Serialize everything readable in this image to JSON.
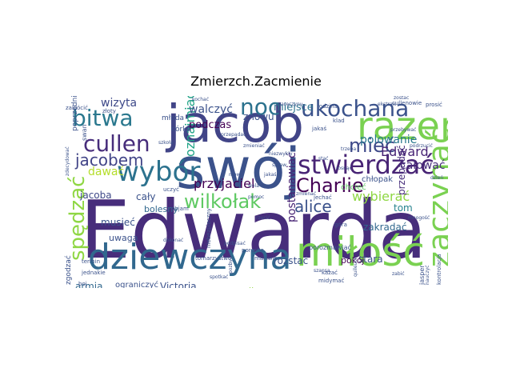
{
  "title": "Zmierzch.Zacmienie",
  "words": [
    {
      "text": "Edwarda",
      "color": "#472d7b"
    },
    {
      "text": "jacob",
      "color": "#414487"
    },
    {
      "text": "swój",
      "color": "#3b528b"
    },
    {
      "text": "razem",
      "color": "#7ad151"
    },
    {
      "text": "miłość",
      "color": "#7ad151"
    },
    {
      "text": "dziewczyna",
      "color": "#31688e"
    },
    {
      "text": "zaczynać",
      "color": "#7ad151"
    },
    {
      "text": "stwierdzać",
      "color": "#482475"
    },
    {
      "text": "wybór",
      "color": "#2c728e"
    },
    {
      "text": "bitwa",
      "color": "#2a788e"
    },
    {
      "text": "cullen",
      "color": "#472d7b"
    },
    {
      "text": "noc",
      "color": "#2c728e"
    },
    {
      "text": "ukochana",
      "color": "#3b528b"
    },
    {
      "text": "mieć",
      "color": "#3e4989"
    },
    {
      "text": "Charlie",
      "color": "#440154"
    },
    {
      "text": "spędzać",
      "color": "#8fd744"
    },
    {
      "text": "jacobem",
      "color": "#414487"
    },
    {
      "text": "wilkołak",
      "color": "#5ec962"
    },
    {
      "text": "alice",
      "color": "#3b528b"
    },
    {
      "text": "wybierać",
      "color": "#8fd744"
    },
    {
      "text": "Edward",
      "color": "#482475"
    },
    {
      "text": "polowanie",
      "color": "#2a788e"
    },
    {
      "text": "przyjaciel",
      "color": "#440154"
    },
    {
      "text": "wizyta",
      "color": "#3e4989"
    },
    {
      "text": "oznajmiać",
      "color": "#20a386"
    },
    {
      "text": "całować",
      "color": "#472d7b"
    },
    {
      "text": "podczas",
      "color": "#440154"
    },
    {
      "text": "walczyć",
      "color": "#3b528b"
    },
    {
      "text": "miejsce",
      "color": "#2c728e"
    },
    {
      "text": "znowu",
      "color": "#3b528b"
    },
    {
      "text": "dawać",
      "color": "#b5de2b"
    },
    {
      "text": "jacoba",
      "color": "#3e4989"
    },
    {
      "text": "cały",
      "color": "#3b528b"
    },
    {
      "text": "bolesny",
      "color": "#31688e"
    },
    {
      "text": "musieć",
      "color": "#3b528b"
    },
    {
      "text": "uwaga",
      "color": "#3b528b"
    },
    {
      "text": "przepadać",
      "color": "#472d7b"
    },
    {
      "text": "zakradać",
      "color": "#31688e"
    },
    {
      "text": "tom",
      "color": "#26828e"
    },
    {
      "text": "postanawiać",
      "color": "#482475"
    },
    {
      "text": "rozstać",
      "color": "#3b528b"
    },
    {
      "text": "stara",
      "color": "#3b528b"
    },
    {
      "text": "Victoria",
      "color": "#3b528b"
    },
    {
      "text": "armia",
      "color": "#31688e"
    },
    {
      "text": "ograniczyć",
      "color": "#3b528b"
    },
    {
      "text": "cullenem",
      "color": "#8fd744"
    },
    {
      "text": "pokój",
      "color": "#440154"
    },
    {
      "text": "chcieć",
      "color": "#5ec962"
    },
    {
      "text": "chłopak",
      "color": "#3b528b"
    },
    {
      "text": "młoda",
      "color": "#3b528b"
    },
    {
      "text": "córka",
      "color": "#3b528b"
    },
    {
      "text": "poprzedni",
      "color": "#3b528b"
    },
    {
      "text": "swan",
      "color": "#3b528b"
    },
    {
      "text": "zgodzać",
      "color": "#3b528b"
    },
    {
      "text": "jasper",
      "color": "#3b528b"
    },
    {
      "text": "porozmawiać",
      "color": "#3b528b"
    },
    {
      "text": "cullenowie",
      "color": "#3b528b"
    },
    {
      "text": "termin",
      "color": "#3b528b"
    },
    {
      "text": "jednakie",
      "color": "#3b528b"
    },
    {
      "text": "tomarzystwo",
      "color": "#3b528b"
    },
    {
      "text": "martwić",
      "color": "#3b528b"
    },
    {
      "text": "kazać",
      "color": "#3b528b"
    },
    {
      "text": "midymać",
      "color": "#3b528b"
    },
    {
      "text": "rodzina",
      "color": "#3b528b"
    },
    {
      "text": "prosić",
      "color": "#3b528b"
    },
    {
      "text": "zostać",
      "color": "#3b528b"
    },
    {
      "text": "jechać",
      "color": "#3b528b"
    },
    {
      "text": "ekstraw",
      "color": "#3b528b"
    },
    {
      "text": "objam",
      "color": "#3b528b"
    },
    {
      "text": "góra",
      "color": "#3b528b"
    },
    {
      "text": "porsche",
      "color": "#3b528b"
    },
    {
      "text": "uczyć",
      "color": "#3b528b"
    },
    {
      "text": "boj",
      "color": "#3b528b"
    },
    {
      "text": "kochać",
      "color": "#3b528b"
    },
    {
      "text": "zakłócić",
      "color": "#3b528b"
    },
    {
      "text": "zdecydować",
      "color": "#3b528b"
    },
    {
      "text": "złoty",
      "color": "#3b528b"
    },
    {
      "text": "przebywać",
      "color": "#3b528b"
    },
    {
      "text": "klad",
      "color": "#3b528b"
    },
    {
      "text": "jakaś",
      "color": "#3b528b"
    },
    {
      "text": "kontrolacja",
      "color": "#3b528b"
    },
    {
      "text": "nauczyć",
      "color": "#3b528b"
    },
    {
      "text": "zmienać",
      "color": "#3b528b"
    },
    {
      "text": "podrzucić",
      "color": "#3b528b"
    },
    {
      "text": "przepadać",
      "color": "#3b528b"
    },
    {
      "text": "szkoła",
      "color": "#3b528b"
    },
    {
      "text": "wola",
      "color": "#3b528b"
    },
    {
      "text": "mowa",
      "color": "#3b528b"
    },
    {
      "text": "niebezpieczny",
      "color": "#3b528b"
    },
    {
      "text": "pozbyć",
      "color": "#3b528b"
    },
    {
      "text": "mnogość",
      "color": "#3b528b"
    },
    {
      "text": "zmieniać",
      "color": "#3b528b"
    },
    {
      "text": "quileuci",
      "color": "#3b528b"
    },
    {
      "text": "pomoc",
      "color": "#3b528b"
    },
    {
      "text": "niezwykły",
      "color": "#3b528b"
    },
    {
      "text": "rzucić",
      "color": "#3b528b"
    },
    {
      "text": "spraw",
      "color": "#3b528b"
    },
    {
      "text": "jakaś",
      "color": "#3b528b"
    },
    {
      "text": "rosnąć",
      "color": "#3b528b"
    },
    {
      "text": "zaręczyny",
      "color": "#3b528b"
    },
    {
      "text": "trzeba",
      "color": "#3b528b"
    },
    {
      "text": "zabić",
      "color": "#3b528b"
    },
    {
      "text": "dzień",
      "color": "#3b528b"
    },
    {
      "text": "dokonać",
      "color": "#3b528b"
    },
    {
      "text": "spotkać",
      "color": "#3b528b"
    },
    {
      "text": "stać",
      "color": "#3b528b"
    },
    {
      "text": "szansa",
      "color": "#3b528b"
    },
    {
      "text": "podpisać",
      "color": "#3b528b"
    }
  ]
}
